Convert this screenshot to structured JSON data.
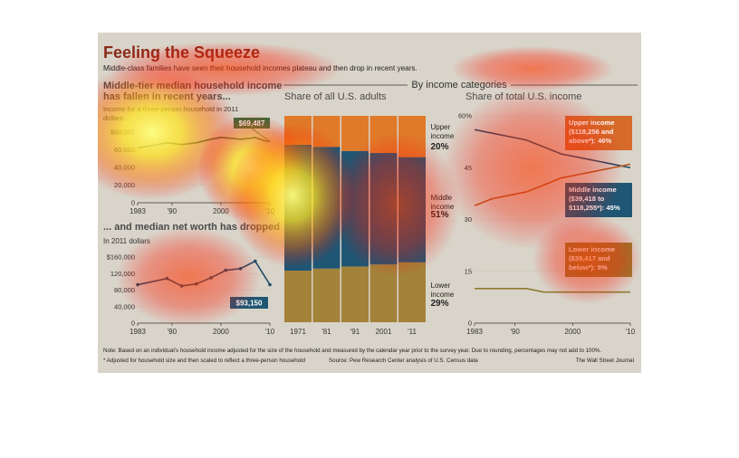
{
  "header": {
    "title": "Feeling the Squeeze",
    "subtitle": "Middle-class families have seen their household incomes plateau and then drop in recent years."
  },
  "colors": {
    "background": "#d9d4c9",
    "upper": "#e07a2a",
    "middle": "#1f5673",
    "lower": "#a3823a",
    "line_dark": "#1f4a66",
    "title_red": "#8a2a1a"
  },
  "chart_data": [
    {
      "type": "line",
      "title": "Middle-tier median household income has fallen in recent years...",
      "subtitle": "Income for a three-person household in 2011 dollars",
      "x_ticks": [
        "1983",
        "'90",
        "2000",
        "'10"
      ],
      "y_ticks": [
        "$80,000",
        "60,000",
        "40,000",
        "20,000",
        "0"
      ],
      "ylim": [
        0,
        80000
      ],
      "x": [
        1983,
        1986,
        1989,
        1992,
        1995,
        1998,
        2000,
        2002,
        2004,
        2006,
        2007,
        2009,
        2010
      ],
      "values": [
        62000,
        65000,
        68000,
        66000,
        68000,
        72000,
        74000,
        73000,
        72000,
        73000,
        74000,
        70000,
        69487
      ],
      "callout": "$69,487"
    },
    {
      "type": "line",
      "title": "... and median net worth has dropped",
      "subtitle": "In 2011 dollars",
      "x_ticks": [
        "1983",
        "'90",
        "2000",
        "'10"
      ],
      "y_ticks": [
        "$160,000",
        "120,000",
        "80,000",
        "40,000",
        "0"
      ],
      "ylim": [
        0,
        160000
      ],
      "x": [
        1983,
        1989,
        1992,
        1995,
        1998,
        2001,
        2004,
        2007,
        2010
      ],
      "values": [
        93000,
        108000,
        90000,
        95000,
        110000,
        128000,
        132000,
        150000,
        93150
      ],
      "callout": "$93,150"
    },
    {
      "type": "bar",
      "title": "Share of all U.S. adults",
      "categories": [
        "1971",
        "'81",
        "'91",
        "2001",
        "'11"
      ],
      "series": [
        {
          "name": "Lower income",
          "values": [
            25,
            26,
            27,
            28,
            29
          ]
        },
        {
          "name": "Middle income",
          "values": [
            61,
            59,
            56,
            54,
            51
          ]
        },
        {
          "name": "Upper income",
          "values": [
            14,
            15,
            17,
            18,
            20
          ]
        }
      ],
      "labels": [
        {
          "name": "Upper income",
          "value": "20%"
        },
        {
          "name": "Middle income",
          "value": "51%"
        },
        {
          "name": "Lower income",
          "value": "29%"
        }
      ],
      "ylim": [
        0,
        100
      ]
    },
    {
      "type": "line",
      "title": "Share of total U.S. income",
      "x_ticks": [
        "1983",
        "'90",
        "2000",
        "'10"
      ],
      "y_ticks": [
        "60%",
        "45",
        "30",
        "15",
        "0"
      ],
      "ylim": [
        0,
        60
      ],
      "x": [
        1983,
        1986,
        1989,
        1992,
        1995,
        1998,
        2001,
        2004,
        2007,
        2010
      ],
      "series": [
        {
          "name": "Middle income",
          "values": [
            56,
            55,
            54,
            53,
            51,
            49,
            48,
            47,
            46,
            45
          ]
        },
        {
          "name": "Upper income",
          "values": [
            34,
            36,
            37,
            38,
            40,
            42,
            43,
            44,
            45,
            46
          ]
        },
        {
          "name": "Lower income",
          "values": [
            10,
            10,
            10,
            10,
            9,
            9,
            9,
            9,
            9,
            9
          ]
        }
      ],
      "annotations": {
        "upper": [
          "Upper income",
          "($118,256 and",
          "above*): 46%"
        ],
        "middle": [
          "Middle income",
          "($39,418 to",
          "$118,255*): 45%"
        ],
        "lower": [
          "Lower income",
          "($39,417 and",
          "below*): 9%"
        ]
      }
    }
  ],
  "section_label": "By income categories",
  "notes": {
    "line1": "Note: Based on an individual's household income adjusted for the size of the household and measured by the calendar year prior to the survey year. Due to rounding, percentages may not add to 100%.",
    "line2": "* Adjusted for household size and then scaled to reflect a three-person household",
    "source": "Source: Pew Research Center analysis of U.S. Census data",
    "credit": "The Wall Street Journal"
  }
}
